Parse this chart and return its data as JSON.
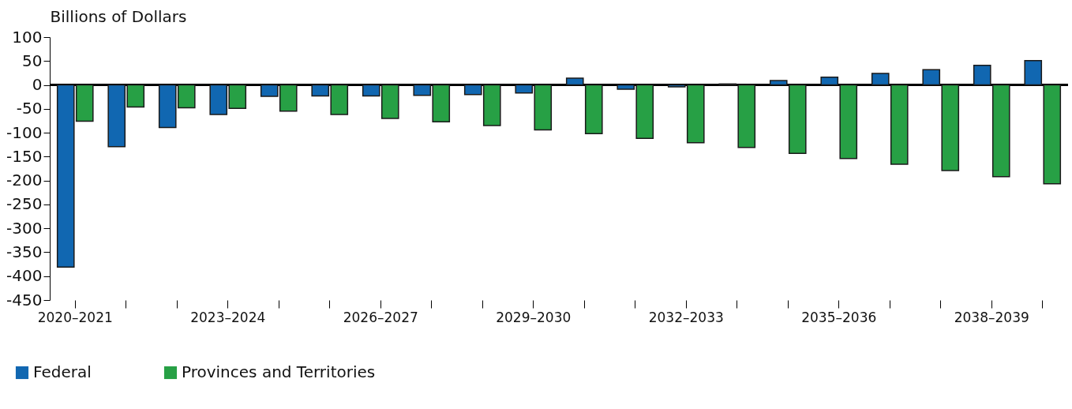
{
  "chart_data": {
    "type": "bar",
    "ylabel": "Billions of Dollars",
    "categories": [
      "2020–2021",
      null,
      null,
      "2023–2024",
      null,
      null,
      "2026–2027",
      null,
      null,
      "2029–2030",
      null,
      null,
      "2032–2033",
      null,
      null,
      "2035–2036",
      null,
      null,
      "2038–2039",
      null
    ],
    "series": [
      {
        "name": "Federal",
        "color": "#1167b1",
        "values": [
          -381,
          -129,
          -89,
          -62,
          -24,
          -23,
          -23,
          -22,
          -20,
          -17,
          14,
          -9,
          -4,
          2,
          9,
          16,
          24,
          32,
          41,
          51
        ]
      },
      {
        "name": "Provinces and Territories",
        "color": "#27a045",
        "values": [
          -76,
          -46,
          -48,
          -49,
          -55,
          -62,
          -70,
          -77,
          -85,
          -94,
          -102,
          -112,
          -121,
          -131,
          -143,
          -154,
          -166,
          -179,
          -192,
          -207
        ]
      }
    ],
    "ylim": [
      -450,
      100
    ],
    "yticks": [
      -450,
      -400,
      -350,
      -300,
      -250,
      -200,
      -150,
      -100,
      -50,
      0,
      50,
      100
    ],
    "ref_lines": [
      {
        "axis": "y",
        "value": 0,
        "color": "#000000"
      }
    ],
    "legend": "bottom left"
  }
}
